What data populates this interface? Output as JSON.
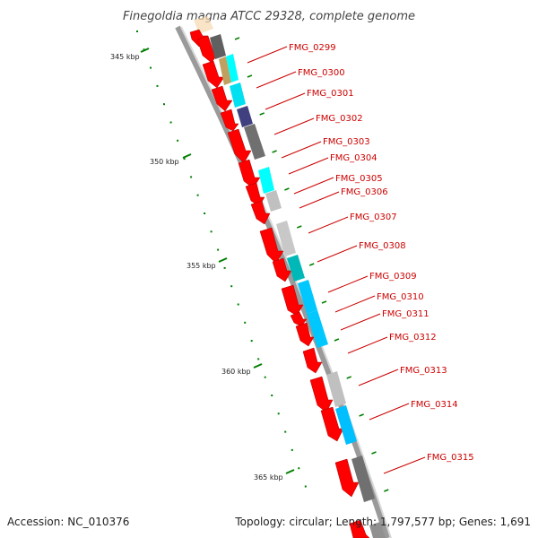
{
  "title": "Finegoldia magna ATCC 29328, complete genome",
  "footer": {
    "accession": "Accession: NC_010376",
    "topology": "Topology: circular; Length: 1,797,577 bp; Genes: 1,691"
  },
  "colors": {
    "backbone": "#888888",
    "gene": "#ff0000",
    "label": "#cc0000",
    "tick": "#008000",
    "cog_palette": [
      "#808080",
      "#00ffff",
      "#c0c0c0",
      "#00b0b0",
      "#00bfff",
      "#404080",
      "#c0a060"
    ]
  },
  "tick_labels": [
    "345 kbp",
    "350 kbp",
    "355 kbp",
    "360 kbp",
    "365 kbp"
  ],
  "genes": [
    "FMG_0299",
    "FMG_0300",
    "FMG_0301",
    "FMG_0302",
    "FMG_0303",
    "FMG_0304",
    "FMG_0305",
    "FMG_0306",
    "FMG_0307",
    "FMG_0308",
    "FMG_0309",
    "FMG_0310",
    "FMG_0311",
    "FMG_0312",
    "FMG_0313",
    "FMG_0314",
    "FMG_0315"
  ]
}
